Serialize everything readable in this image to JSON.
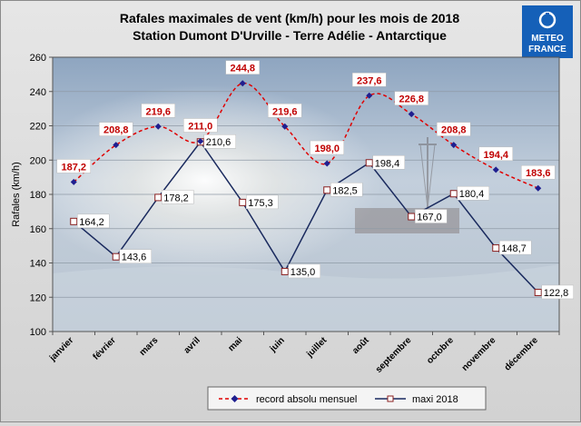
{
  "chart_data": {
    "type": "line",
    "title": "Rafales maximales de vent  (km/h) pour les mois de 2018",
    "subtitle": "Station Dumont D'Urville  - Terre Adélie - Antarctique",
    "ylabel": "Rafales  (km/h)",
    "xlabel": "",
    "ylim": [
      100,
      260
    ],
    "yticks": [
      "100",
      "120",
      "140",
      "160",
      "180",
      "200",
      "220",
      "240",
      "260"
    ],
    "grid": true,
    "categories": [
      "janvier",
      "février",
      "mars",
      "avril",
      "mai",
      "juin",
      "juillet",
      "août",
      "septembre",
      "octobre",
      "novembre",
      "décembre"
    ],
    "series": [
      {
        "name": "record absolu mensuel",
        "values": [
          187.2,
          208.8,
          219.6,
          211.0,
          244.8,
          219.6,
          198.0,
          237.6,
          226.8,
          208.8,
          194.4,
          183.6
        ],
        "labels": [
          "187,2",
          "208,8",
          "219,6",
          "211,0",
          "244,8",
          "219,6",
          "198,0",
          "237,6",
          "226,8",
          "208,8",
          "194,4",
          "183,6"
        ],
        "color": "#e00000",
        "marker_color": "#1f1f8f",
        "style": "dashed"
      },
      {
        "name": "maxi 2018",
        "values": [
          164.2,
          143.6,
          178.2,
          210.6,
          175.3,
          135.0,
          182.5,
          198.4,
          167.0,
          180.4,
          148.7,
          122.8
        ],
        "labels": [
          "164,2",
          "143,6",
          "178,2",
          "210,6",
          "175,3",
          "135,0",
          "182,5",
          "198,4",
          "167,0",
          "180,4",
          "148,7",
          "122,8"
        ],
        "color": "#1a2a5e",
        "marker_color": "#ffffff",
        "style": "solid"
      }
    ],
    "legend_position": "bottom"
  },
  "logo": {
    "line1": "METEO",
    "line2": "FRANCE"
  },
  "colors": {
    "logo_bg": "#1560b8",
    "record": "#e00000",
    "maxi": "#1a2a5e",
    "grid": "#9a9a9a"
  }
}
